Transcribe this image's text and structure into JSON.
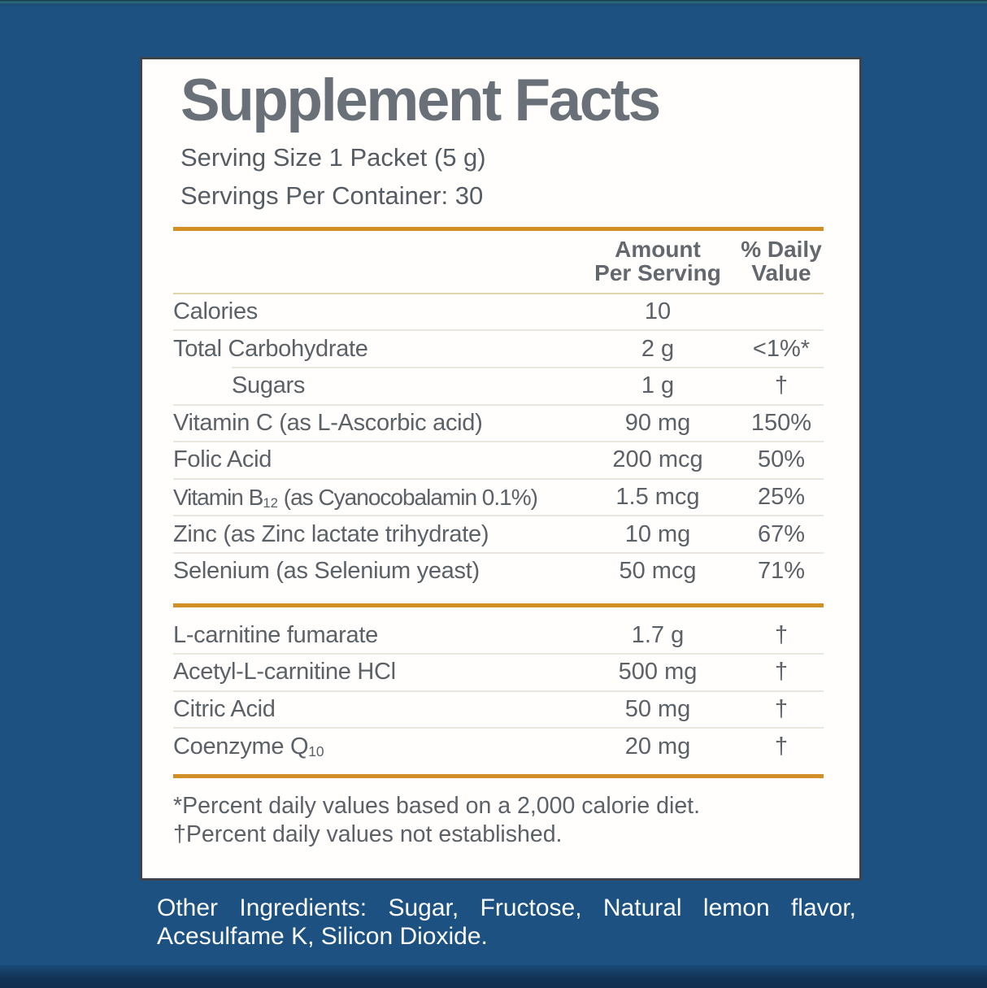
{
  "colors": {
    "background_blue": "#1c5181",
    "accent_orange": "#d18f26",
    "panel_background": "#fffefc",
    "panel_border": "#3e444e",
    "title_gray": "#6a7077",
    "text_gray": "#5b6167",
    "separator_light": "#e8e6df",
    "header_rule_tan": "#ded5ab"
  },
  "label": {
    "title": "Supplement Facts",
    "serving_size": "Serving Size 1 Packet (5 g)",
    "servings_per_container": "Servings Per Container: 30",
    "header": {
      "amount_line1": "Amount",
      "amount_line2": "Per Serving",
      "dv_line1": "% Daily",
      "dv_line2": "Value"
    },
    "groups": [
      {
        "rows": [
          {
            "name": [
              {
                "t": "Calories"
              }
            ],
            "amount": "10",
            "dv": "",
            "indent": false,
            "sep": "full"
          },
          {
            "name": [
              {
                "t": "Total Carbohydrate"
              }
            ],
            "amount": "2 g",
            "dv": "<1%*",
            "indent": false,
            "sep": "inset"
          },
          {
            "name": [
              {
                "t": "Sugars"
              }
            ],
            "amount": "1 g",
            "dv": "†",
            "indent": true,
            "sep": "full"
          },
          {
            "name": [
              {
                "t": "Vitamin C (as L-Ascorbic acid)"
              }
            ],
            "amount": "90 mg",
            "dv": "150%",
            "indent": false,
            "sep": "full"
          },
          {
            "name": [
              {
                "t": "Folic Acid"
              }
            ],
            "amount": "200 mcg",
            "dv": "50%",
            "indent": false,
            "sep": "full"
          },
          {
            "name": [
              {
                "t": "Vitamin B"
              },
              {
                "t": "12",
                "sub": true
              },
              {
                "t": " (as Cyanocobalamin 0.1%)"
              }
            ],
            "amount": "1.5 mcg",
            "dv": "25%",
            "indent": false,
            "sep": "full",
            "condensed": true
          },
          {
            "name": [
              {
                "t": "Zinc (as Zinc lactate trihydrate)"
              }
            ],
            "amount": "10 mg",
            "dv": "67%",
            "indent": false,
            "sep": "full"
          },
          {
            "name": [
              {
                "t": "Selenium (as Selenium yeast)"
              }
            ],
            "amount": "50 mcg",
            "dv": "71%",
            "indent": false,
            "sep": "none"
          }
        ]
      },
      {
        "rows": [
          {
            "name": [
              {
                "t": "L-carnitine fumarate"
              }
            ],
            "amount": "1.7 g",
            "dv": "†",
            "indent": false,
            "sep": "full"
          },
          {
            "name": [
              {
                "t": "Acetyl-L-carnitine HCl"
              }
            ],
            "amount": "500 mg",
            "dv": "†",
            "indent": false,
            "sep": "full"
          },
          {
            "name": [
              {
                "t": "Citric Acid"
              }
            ],
            "amount": "50 mg",
            "dv": "†",
            "indent": false,
            "sep": "full"
          },
          {
            "name": [
              {
                "t": "Coenzyme Q"
              },
              {
                "t": "10",
                "sub": true
              }
            ],
            "amount": "20 mg",
            "dv": "†",
            "indent": false,
            "sep": "none"
          }
        ]
      }
    ],
    "footnotes": [
      "*Percent daily values based on a 2,000 calorie diet.",
      "†Percent daily values not established."
    ]
  },
  "other_ingredients": "Other Ingredients: Sugar, Fructose, Natural lemon flavor, Acesulfame K, Silicon Dioxide."
}
